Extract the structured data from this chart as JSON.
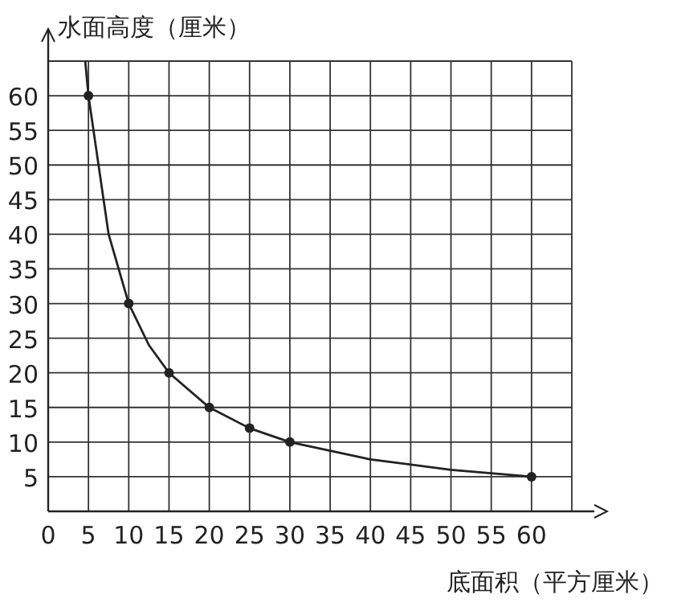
{
  "chart_data": {
    "type": "line",
    "xlabel": "底面积（平方厘米）",
    "ylabel": "水面高度（厘米）",
    "xlim": [
      0,
      65
    ],
    "ylim": [
      0,
      65
    ],
    "xticks": [
      0,
      5,
      10,
      15,
      20,
      25,
      30,
      35,
      40,
      45,
      50,
      55,
      60
    ],
    "yticks": [
      5,
      10,
      15,
      20,
      25,
      30,
      35,
      40,
      45,
      50,
      55,
      60
    ],
    "grid": true,
    "series": [
      {
        "marker": "none",
        "color": "#222222",
        "x": [
          4.6,
          5,
          7.5,
          10,
          12.5,
          15,
          20,
          25,
          30,
          40,
          50,
          60
        ],
        "values": [
          65,
          60,
          40,
          30,
          24,
          20,
          15,
          12,
          10,
          7.5,
          6,
          5
        ]
      },
      {
        "type": "scatter",
        "marker": "circle",
        "color": "#222222",
        "x": [
          5,
          10,
          15,
          20,
          25,
          30,
          60
        ],
        "values": [
          60,
          30,
          20,
          15,
          12,
          10,
          5
        ]
      }
    ]
  }
}
